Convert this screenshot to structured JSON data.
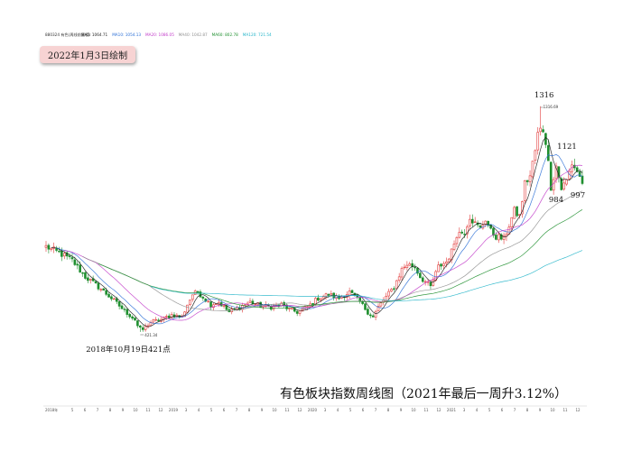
{
  "header": {
    "code_name": "880324 有色(周线前复权)",
    "ma_labels": [
      {
        "text": "MA5: 1064.71",
        "color": "#1a1a1a"
      },
      {
        "text": "MA10: 1054.13",
        "color": "#2b6fd6"
      },
      {
        "text": "MA20: 1086.05",
        "color": "#c23bc9"
      },
      {
        "text": "MA40: 1042.87",
        "color": "#8f8f8f"
      },
      {
        "text": "MA60: 802.78",
        "color": "#1f8f2f"
      },
      {
        "text": "MA120: 721.54",
        "color": "#25b5c9"
      }
    ]
  },
  "badge": "2022年1月3日绘制",
  "title": "有色板块指数周线图（2021年最后一周升3.12%）",
  "chart_data": {
    "type": "candlestick",
    "x_start_label": "2018年",
    "x_tick_labels": [
      "5",
      "6",
      "7",
      "8",
      "9",
      "10",
      "11",
      "12",
      "2019",
      "3",
      "4",
      "5",
      "6",
      "7",
      "8",
      "9",
      "10",
      "11",
      "12",
      "2020",
      "3",
      "4",
      "5",
      "6",
      "7",
      "8",
      "9",
      "10",
      "11",
      "12",
      "2021",
      "3",
      "4",
      "5",
      "6",
      "7",
      "8",
      "9",
      "10",
      "11",
      "12"
    ],
    "ylim": [
      330,
      1380
    ],
    "annotations": [
      {
        "text": "1316",
        "x_index": 189,
        "y": 1316
      },
      {
        "text": "1316.69",
        "x_index": 189,
        "y": 1316.69
      },
      {
        "text": "1121",
        "x_index": 196,
        "y": 1121
      },
      {
        "text": "984",
        "x_index": 197,
        "y": 984
      },
      {
        "text": "997",
        "x_index": 204,
        "y": 997
      },
      {
        "text": "2018年10月19日421点",
        "x_index": 36,
        "y": 421
      },
      {
        "text": "421.34",
        "x_index": 36,
        "y": 421.34
      }
    ],
    "anchors": [
      [
        0,
        760
      ],
      [
        5,
        735
      ],
      [
        10,
        705
      ],
      [
        15,
        640
      ],
      [
        20,
        600
      ],
      [
        25,
        555
      ],
      [
        30,
        505
      ],
      [
        34,
        470
      ],
      [
        36,
        421
      ],
      [
        40,
        460
      ],
      [
        44,
        470
      ],
      [
        48,
        490
      ],
      [
        52,
        480
      ],
      [
        54,
        530
      ],
      [
        56,
        570
      ],
      [
        58,
        580
      ],
      [
        60,
        560
      ],
      [
        63,
        530
      ],
      [
        66,
        540
      ],
      [
        70,
        500
      ],
      [
        74,
        520
      ],
      [
        78,
        540
      ],
      [
        82,
        525
      ],
      [
        86,
        520
      ],
      [
        90,
        530
      ],
      [
        93,
        510
      ],
      [
        96,
        500
      ],
      [
        100,
        520
      ],
      [
        104,
        555
      ],
      [
        108,
        570
      ],
      [
        112,
        555
      ],
      [
        116,
        580
      ],
      [
        118,
        560
      ],
      [
        120,
        540
      ],
      [
        123,
        500
      ],
      [
        125,
        480
      ],
      [
        127,
        520
      ],
      [
        130,
        560
      ],
      [
        133,
        600
      ],
      [
        136,
        670
      ],
      [
        138,
        690
      ],
      [
        141,
        680
      ],
      [
        143,
        640
      ],
      [
        145,
        620
      ],
      [
        147,
        600
      ],
      [
        150,
        680
      ],
      [
        153,
        700
      ],
      [
        155,
        740
      ],
      [
        157,
        810
      ],
      [
        160,
        820
      ],
      [
        162,
        880
      ],
      [
        164,
        850
      ],
      [
        166,
        830
      ],
      [
        168,
        870
      ],
      [
        170,
        820
      ],
      [
        172,
        800
      ],
      [
        175,
        790
      ],
      [
        177,
        845
      ],
      [
        179,
        900
      ],
      [
        181,
        880
      ],
      [
        183,
        1010
      ],
      [
        185,
        1040
      ],
      [
        187,
        1140
      ],
      [
        189,
        1270
      ],
      [
        191,
        1180
      ],
      [
        193,
        1000
      ],
      [
        195,
        1080
      ],
      [
        197,
        990
      ],
      [
        199,
        1020
      ],
      [
        201,
        1090
      ],
      [
        203,
        1060
      ],
      [
        205,
        1010
      ]
    ],
    "bars_count": 206,
    "series": [
      {
        "name": "MA5",
        "period": 5,
        "color": "#1a1a1a"
      },
      {
        "name": "MA10",
        "period": 10,
        "color": "#2b6fd6"
      },
      {
        "name": "MA20",
        "period": 20,
        "color": "#c23bc9"
      },
      {
        "name": "MA40",
        "period": 40,
        "color": "#8f8f8f"
      },
      {
        "name": "MA60",
        "period": 60,
        "color": "#1f8f2f"
      },
      {
        "name": "MA120",
        "period": 120,
        "color": "#25b5c9"
      }
    ],
    "colors": {
      "up": "#e23b3b",
      "down": "#1f8f2f",
      "axis": "#cccccc",
      "grid": "#e6e6e6"
    }
  }
}
